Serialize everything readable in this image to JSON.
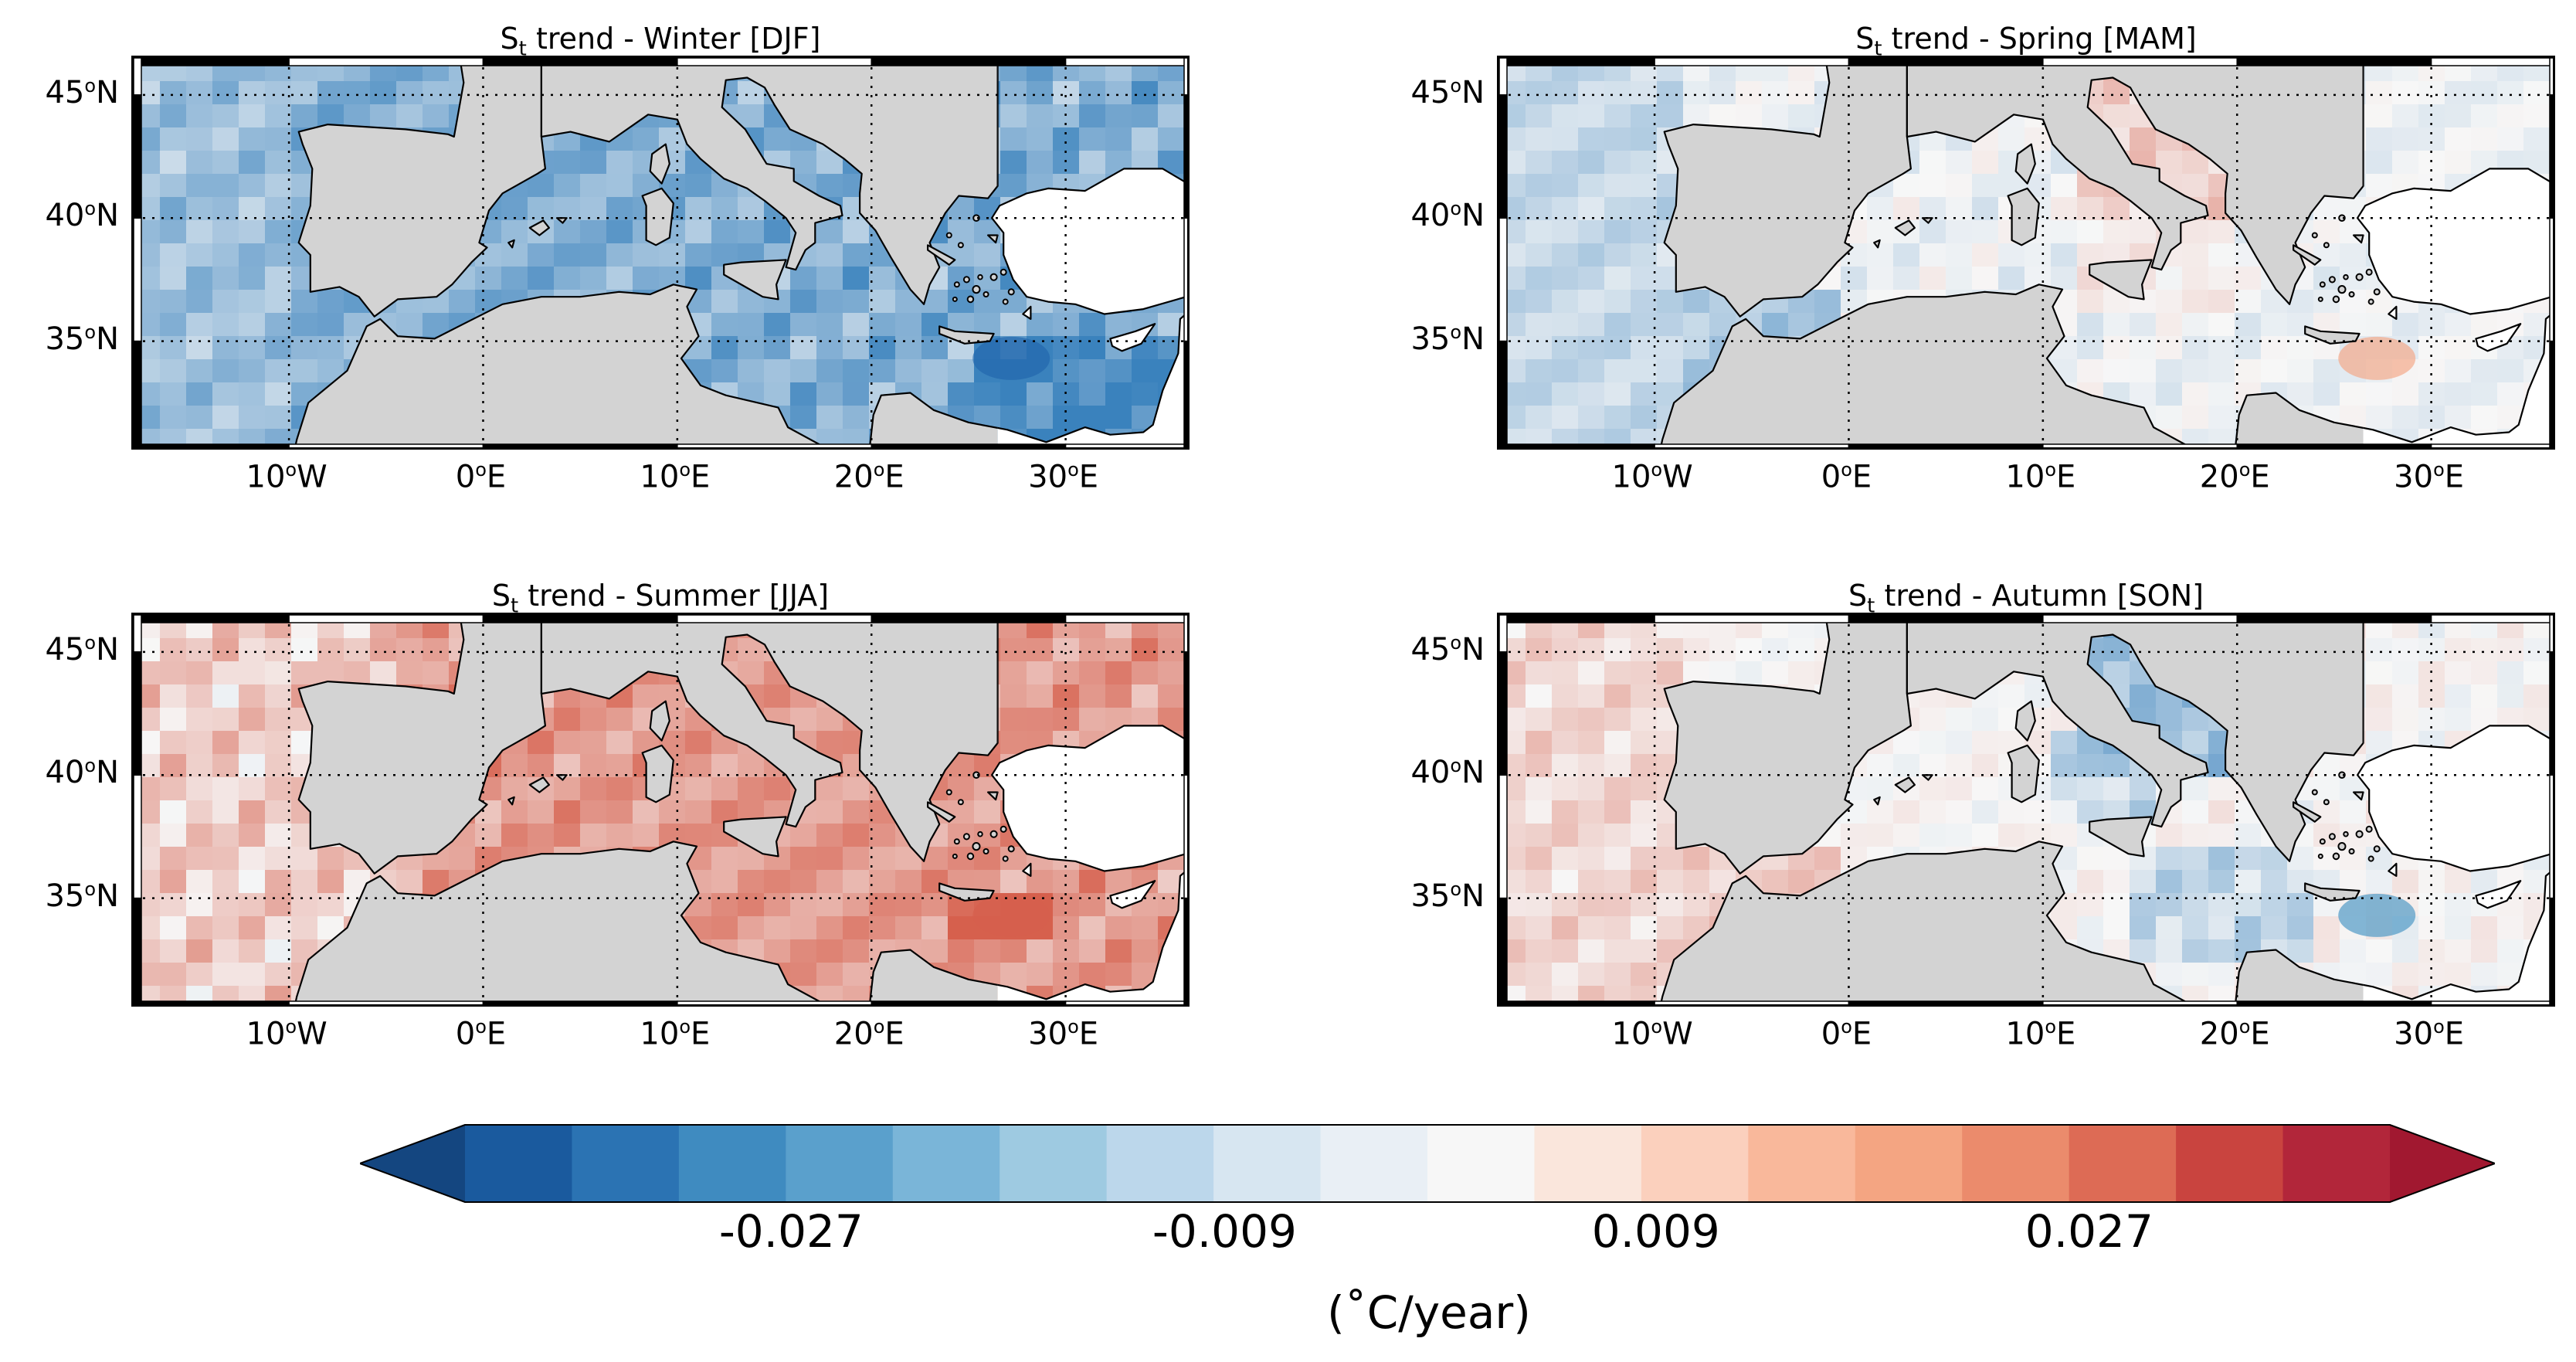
{
  "panels": [
    {
      "key": "winter",
      "title_prefix": "S",
      "title_sub": "t",
      "title_rest": " trend - Winter [DJF]",
      "field": "cool",
      "intensity": 0.55,
      "hotspot_color": "#2166ac"
    },
    {
      "key": "spring",
      "title_prefix": "S",
      "title_sub": "t",
      "title_rest": " trend - Spring [MAM]",
      "field": "mixed_spring",
      "intensity": 0.25,
      "hotspot_color": "#f4a582"
    },
    {
      "key": "summer",
      "title_prefix": "S",
      "title_sub": "t",
      "title_rest": " trend - Summer [JJA]",
      "field": "warm",
      "intensity": 0.55,
      "hotspot_color": "#d6604d"
    },
    {
      "key": "autumn",
      "title_prefix": "S",
      "title_sub": "t",
      "title_rest": " trend - Autumn [SON]",
      "field": "mixed_autumn",
      "intensity": 0.3,
      "hotspot_color": "#4393c3"
    }
  ],
  "axes": {
    "lon_range": [
      -18,
      36.5
    ],
    "lat_range": [
      30.5,
      46.5
    ],
    "lat_ticks": [
      {
        "value": 45,
        "num": "45",
        "deg": "o",
        "hemi": "N"
      },
      {
        "value": 40,
        "num": "40",
        "deg": "o",
        "hemi": "N"
      },
      {
        "value": 35,
        "num": "35",
        "deg": "o",
        "hemi": "N"
      }
    ],
    "lon_ticks": [
      {
        "value": -10,
        "num": "10",
        "deg": "o",
        "hemi": "W"
      },
      {
        "value": 0,
        "num": "0",
        "deg": "o",
        "hemi": "E"
      },
      {
        "value": 10,
        "num": "10",
        "deg": "o",
        "hemi": "E"
      },
      {
        "value": 20,
        "num": "20",
        "deg": "o",
        "hemi": "E"
      },
      {
        "value": 30,
        "num": "30",
        "deg": "o",
        "hemi": "E"
      }
    ]
  },
  "colors": {
    "land_west": "#d3d3d3",
    "land_east": "#ffffff",
    "coast": "#000000"
  },
  "colorbar": {
    "colors": [
      "#1a5a9e",
      "#2b73b3",
      "#3f8bc0",
      "#5aa0cc",
      "#7ab5d8",
      "#9ecae1",
      "#bcd7eb",
      "#d7e6f1",
      "#e9eff5",
      "#f7f7f7",
      "#fae6dc",
      "#fbd0bd",
      "#f9b89b",
      "#f4a582",
      "#eb8b6c",
      "#dd6b55",
      "#c9443f",
      "#b2263a"
    ],
    "extend_low_color": "#144680",
    "extend_high_color": "#a11830",
    "tick_labels": [
      {
        "label": "-0.027",
        "pos": 0.202
      },
      {
        "label": "-0.009",
        "pos": 0.405
      },
      {
        "label": "0.009",
        "pos": 0.607
      },
      {
        "label": "0.027",
        "pos": 0.81
      }
    ],
    "units": "(˚C/year)"
  }
}
